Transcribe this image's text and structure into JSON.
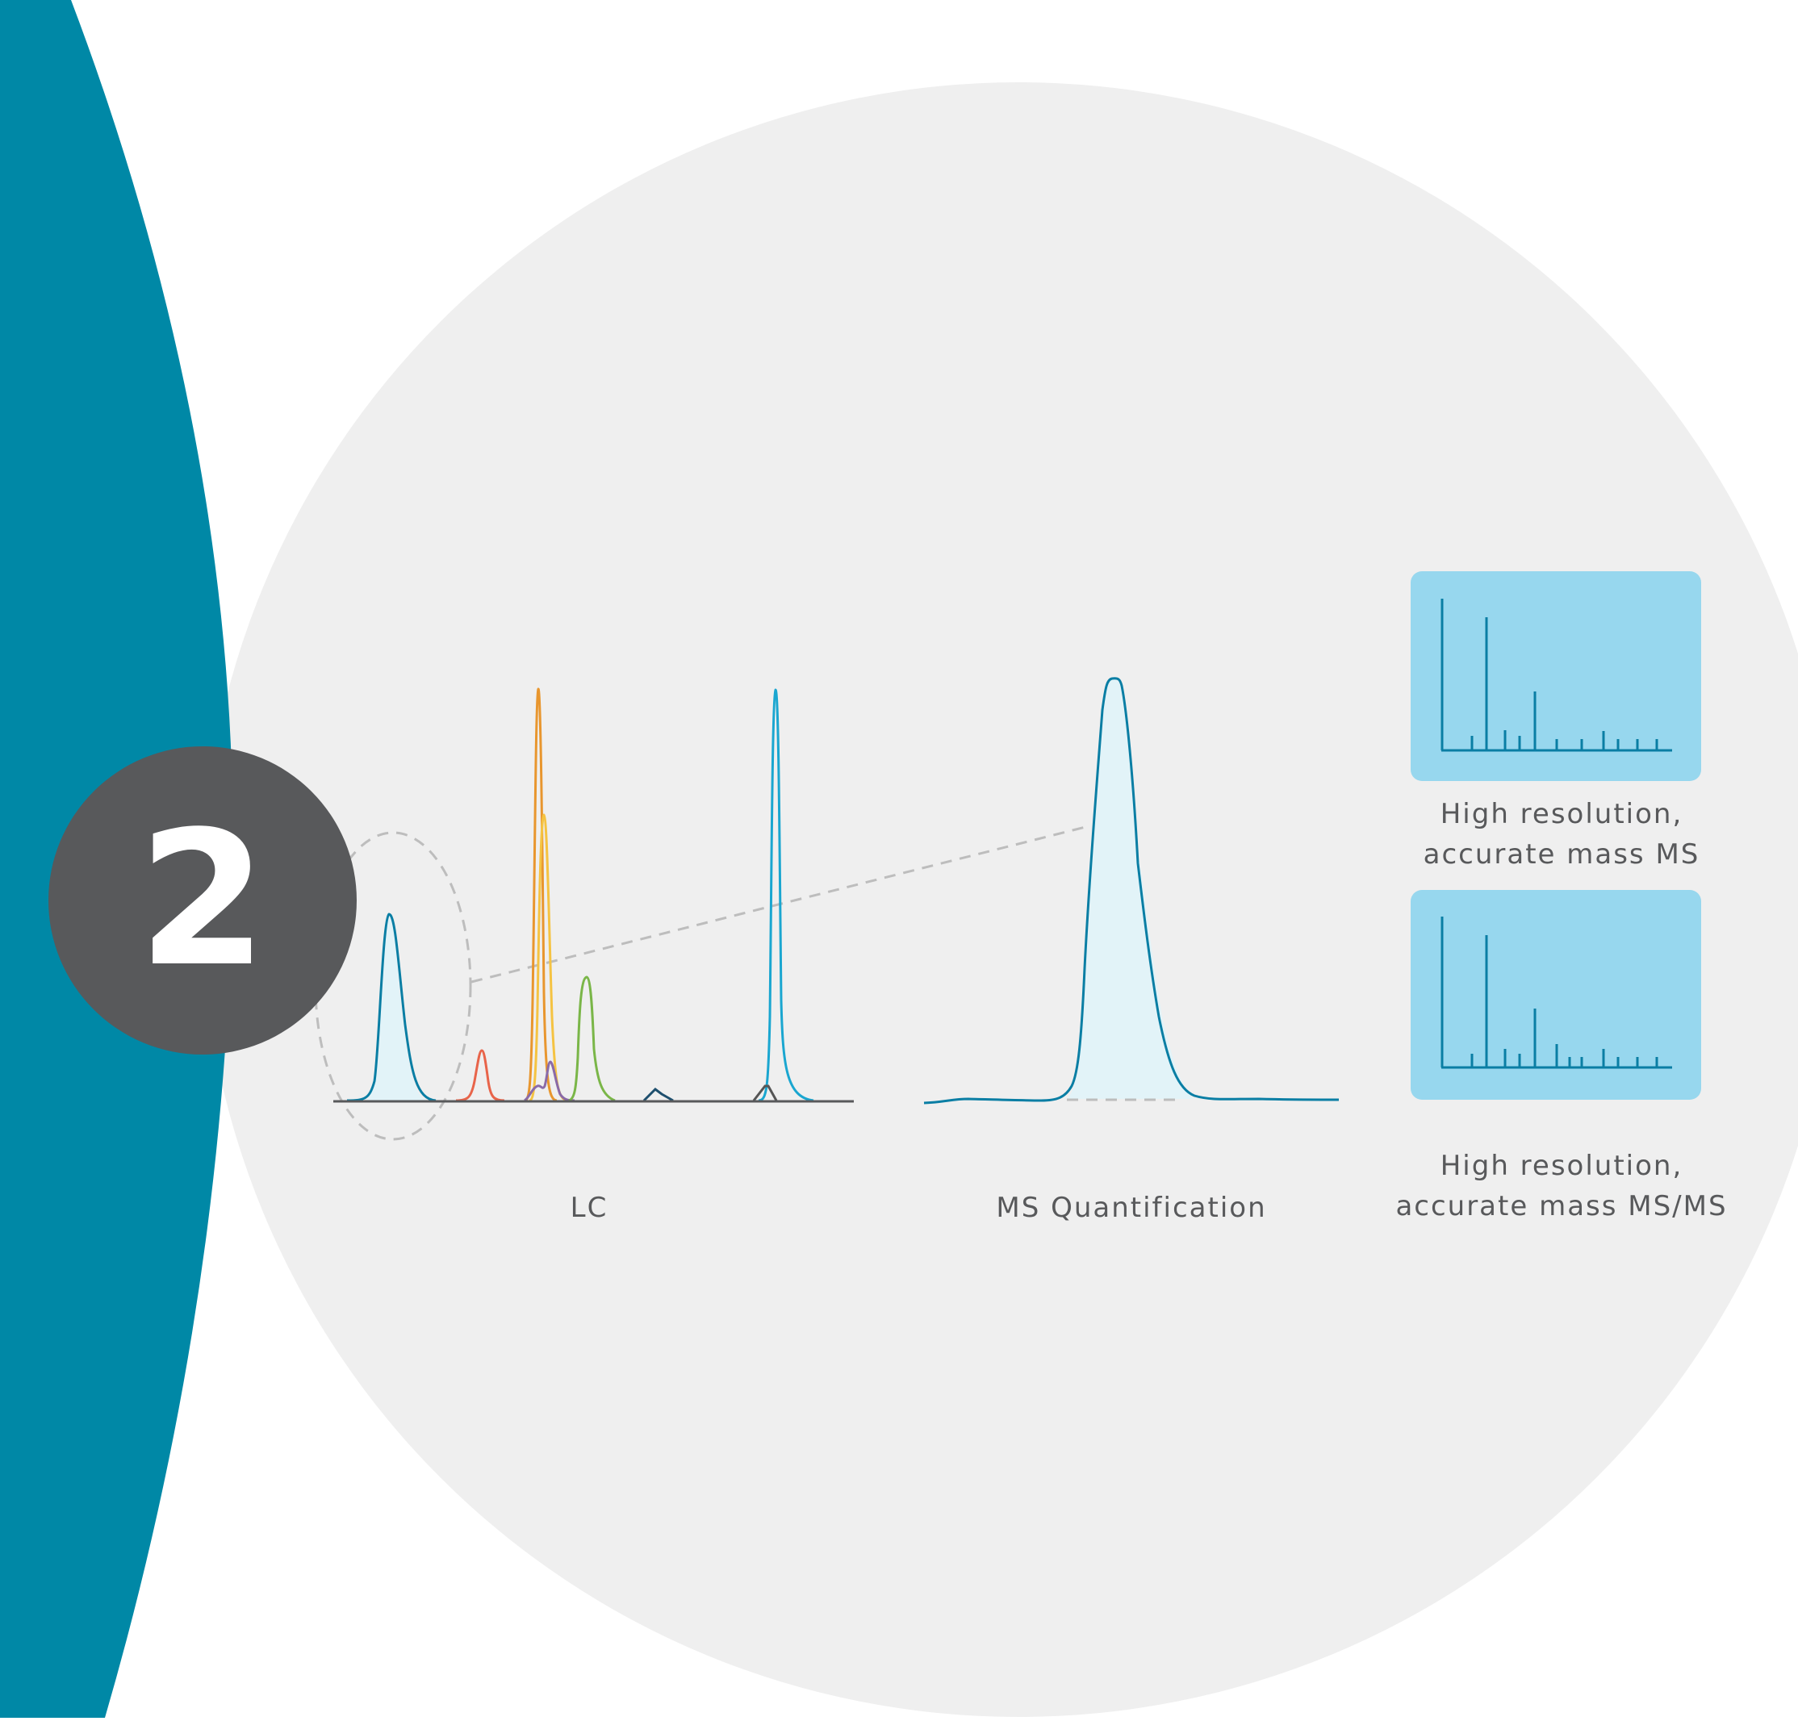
{
  "step": {
    "number": "2"
  },
  "labels": {
    "lc": "LC",
    "ms_quantification": "MS Quantification",
    "ms_panel": [
      "High resolution,",
      "accurate mass MS"
    ],
    "msms_panel": [
      "High resolution,",
      "accurate mass MS/MS"
    ]
  },
  "colors": {
    "teal_band": "#0088a6",
    "background_circle": "#efefef",
    "step_badge": "#58595b",
    "spectrum_panel": "#97d7ee",
    "spectrum_line": "#0a7ea4",
    "peak_fill": "#e2f3f8",
    "lc_peaks": [
      "#0a7ea4",
      "#e8644a",
      "#e8962e",
      "#f5c342",
      "#8a6aa8",
      "#7ab648",
      "#1e4f6e",
      "#1aa6d0",
      "#555555"
    ]
  },
  "icons": [
    "step-badge-icon",
    "dashed-ellipse-icon",
    "zoom-line-icon"
  ]
}
